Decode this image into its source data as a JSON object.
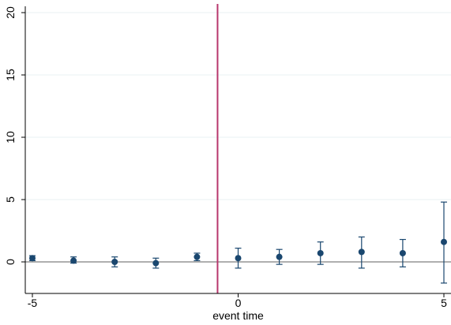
{
  "chart_data": {
    "type": "scatter",
    "title": "",
    "xlabel": "event time",
    "ylabel": "",
    "xlim": [
      -5,
      5
    ],
    "ylim": [
      0,
      20
    ],
    "x_ticks": [
      -5,
      0,
      5
    ],
    "y_ticks": [
      0,
      5,
      10,
      15,
      20
    ],
    "x_tick_labels": [
      "-5",
      "0",
      "5"
    ],
    "y_tick_labels": [
      "0",
      "5",
      "10",
      "15",
      "20"
    ],
    "grid": "horizontal",
    "legend": "none",
    "reference_lines": {
      "vertical_x": -0.5,
      "horizontal_y": 0
    },
    "series": [
      {
        "points": [
          {
            "x": -5,
            "y": 0.3,
            "lo": 0.1,
            "hi": 0.5
          },
          {
            "x": -4,
            "y": 0.1,
            "lo": -0.1,
            "hi": 0.4
          },
          {
            "x": -3,
            "y": 0.0,
            "lo": -0.4,
            "hi": 0.4
          },
          {
            "x": -2,
            "y": -0.1,
            "lo": -0.5,
            "hi": 0.3
          },
          {
            "x": -1,
            "y": 0.4,
            "lo": 0.1,
            "hi": 0.7
          },
          {
            "x": 0,
            "y": 0.3,
            "lo": -0.5,
            "hi": 1.1
          },
          {
            "x": 1,
            "y": 0.4,
            "lo": -0.2,
            "hi": 1.0
          },
          {
            "x": 2,
            "y": 0.7,
            "lo": -0.2,
            "hi": 1.6
          },
          {
            "x": 3,
            "y": 0.8,
            "lo": -0.5,
            "hi": 2.0
          },
          {
            "x": 4,
            "y": 0.7,
            "lo": -0.4,
            "hi": 1.8
          },
          {
            "x": 5,
            "y": 1.6,
            "lo": -1.7,
            "hi": 4.8
          }
        ]
      }
    ],
    "colors": {
      "marker": "#1a476f",
      "errorbar": "#1a476f",
      "vertical_line": "#b8376d",
      "zero_line": "#7f7f7f",
      "grid": "#eaf2f3",
      "axis": "#000000"
    }
  }
}
